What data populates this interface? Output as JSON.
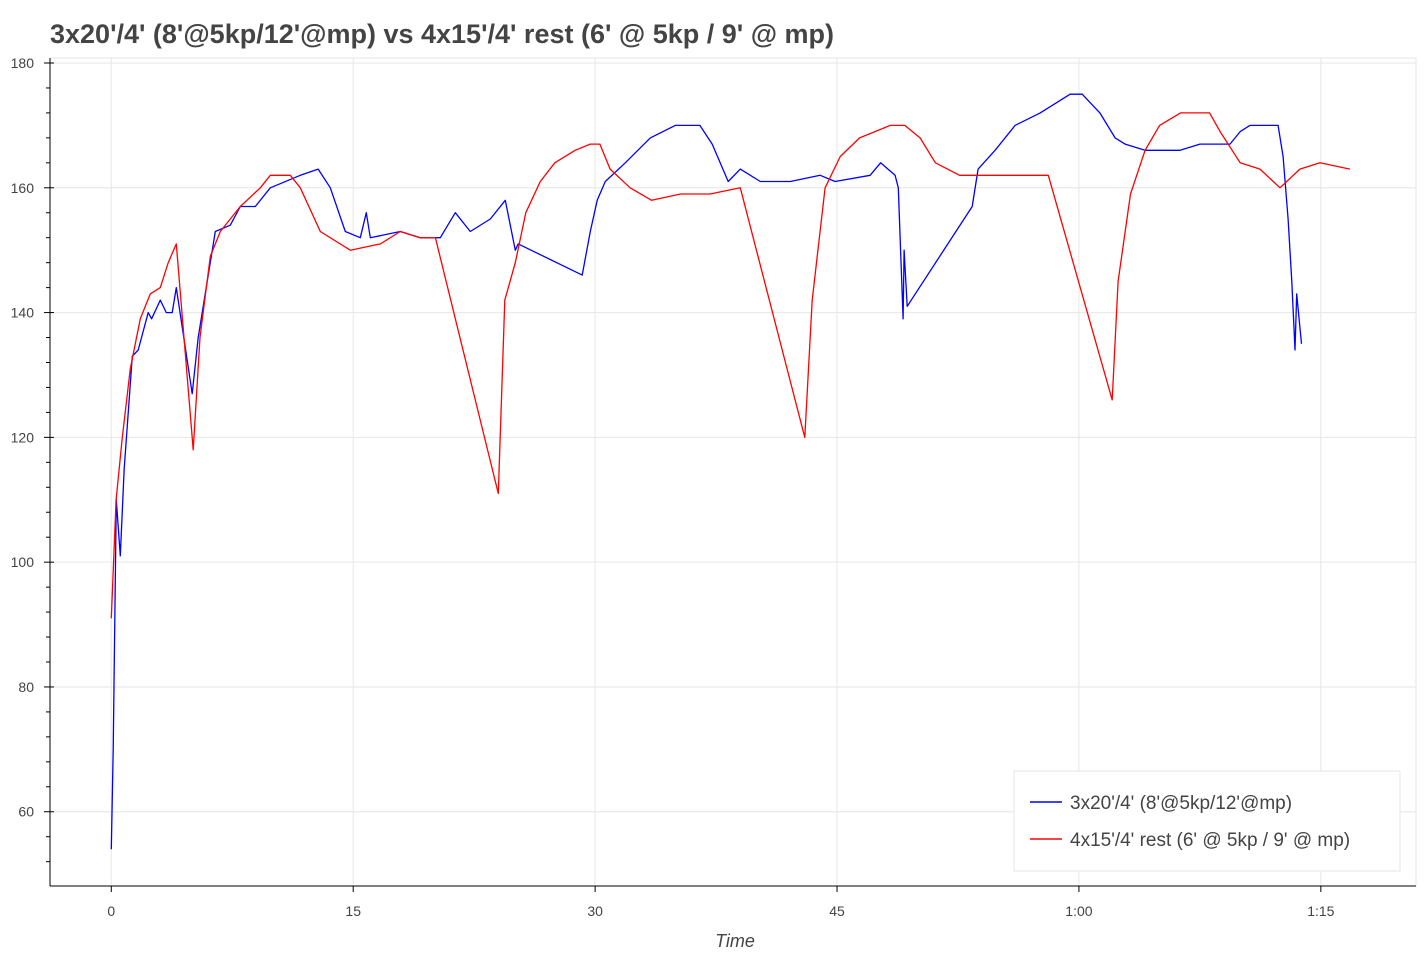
{
  "chart_data": {
    "type": "line",
    "title": "3x20'/4' (8'@5kp/12'@mp) vs 4x15'/4' rest (6' @ 5kp / 9' @ mp)",
    "xlabel": "Time",
    "ylabel": "",
    "xlim": [
      -3.8,
      80.9
    ],
    "ylim": [
      48.1,
      180.8
    ],
    "grid": true,
    "legend_position": "bottom-right",
    "x_ticks": [
      {
        "value": 0,
        "label": "0"
      },
      {
        "value": 15,
        "label": "15"
      },
      {
        "value": 30,
        "label": "30"
      },
      {
        "value": 45,
        "label": "45"
      },
      {
        "value": 60,
        "label": "1:00"
      },
      {
        "value": 75,
        "label": "1:15"
      }
    ],
    "y_ticks": [
      {
        "value": 60,
        "label": "60"
      },
      {
        "value": 80,
        "label": "80"
      },
      {
        "value": 100,
        "label": "100"
      },
      {
        "value": 120,
        "label": "120"
      },
      {
        "value": 140,
        "label": "140"
      },
      {
        "value": 160,
        "label": "160"
      },
      {
        "value": 180,
        "label": "180"
      }
    ],
    "series": [
      {
        "name": "3x20'/4' (8'@5kp/12'@mp)",
        "color": "#0000ff",
        "x": [
          0,
          0.12,
          0.31,
          0.56,
          0.8,
          1.3,
          1.67,
          2.29,
          2.5,
          3.04,
          3.41,
          3.78,
          4.03,
          5.02,
          5.39,
          5.7,
          6.45,
          7.38,
          8.0,
          8.93,
          9.86,
          11.72,
          12.83,
          13.58,
          14.51,
          15.44,
          15.81,
          16.06,
          17.92,
          19.16,
          20.4,
          21.33,
          22.26,
          23.5,
          24.43,
          25.05,
          25.23,
          29.2,
          29.7,
          30.13,
          30.63,
          31.87,
          33.42,
          34.97,
          36.5,
          37.26,
          38.25,
          39.0,
          40.24,
          42.1,
          43.96,
          44.88,
          47.05,
          47.7,
          48.6,
          48.8,
          49.1,
          49.16,
          49.35,
          53.38,
          53.75,
          54.8,
          56.04,
          57.6,
          59.45,
          60.2,
          61.3,
          62.24,
          62.86,
          64.1,
          66.27,
          67.5,
          69.37,
          70.0,
          70.6,
          72.35,
          72.66,
          72.97,
          73.2,
          73.4,
          73.5,
          73.8
        ],
        "y": [
          54,
          70,
          110,
          101,
          115,
          133,
          134,
          140,
          139,
          142,
          140,
          140,
          144,
          127,
          136,
          141,
          153,
          154,
          157,
          157,
          160,
          162,
          163,
          160,
          153,
          152,
          156,
          152,
          153,
          152,
          152,
          156,
          153,
          155,
          158,
          150,
          151,
          146,
          153,
          158,
          161,
          164,
          168,
          170,
          170,
          167,
          161,
          163,
          161,
          161,
          162,
          161,
          162,
          164,
          162,
          160,
          139,
          150,
          141,
          157,
          163,
          166,
          170,
          172,
          175,
          175,
          172,
          168,
          167,
          166,
          166,
          167,
          167,
          169,
          170,
          170,
          165,
          155,
          145,
          134,
          143,
          135
        ]
      },
      {
        "name": "4x15'/4' rest (6' @ 5kp / 9' @ mp)",
        "color": "#ff0000",
        "x": [
          0,
          0.3,
          0.68,
          1.18,
          1.8,
          2.42,
          3.04,
          3.53,
          4.03,
          5.08,
          5.5,
          6.14,
          6.76,
          8.0,
          9.24,
          9.86,
          11.1,
          11.72,
          12.96,
          14.82,
          16.68,
          17.92,
          19.16,
          20.1,
          24.0,
          24.4,
          25.05,
          25.7,
          26.6,
          27.5,
          28.76,
          29.7,
          30.3,
          30.93,
          32.17,
          33.5,
          35.3,
          37.13,
          39.0,
          43.0,
          43.46,
          44.26,
          45.2,
          46.4,
          48.3,
          49.2,
          50.15,
          51.1,
          52.6,
          55.1,
          58.1,
          62.06,
          62.43,
          63.2,
          64.1,
          65.0,
          66.3,
          68.1,
          68.75,
          70.0,
          71.23,
          72.47,
          73.7,
          74.95,
          76.8
        ],
        "y": [
          91,
          110,
          120,
          131,
          139,
          143,
          144,
          148,
          151,
          118,
          136,
          149,
          153,
          157,
          160,
          162,
          162,
          160,
          153,
          150,
          151,
          153,
          152,
          152,
          111,
          142,
          148,
          156,
          161,
          164,
          166,
          167,
          167,
          163,
          160,
          158,
          159,
          159,
          160,
          120,
          142,
          160,
          165,
          168,
          170,
          170,
          168,
          164,
          162,
          162,
          162,
          126,
          145,
          159,
          166,
          170,
          172,
          172,
          169,
          164,
          163,
          160,
          163,
          164,
          163
        ]
      }
    ]
  }
}
